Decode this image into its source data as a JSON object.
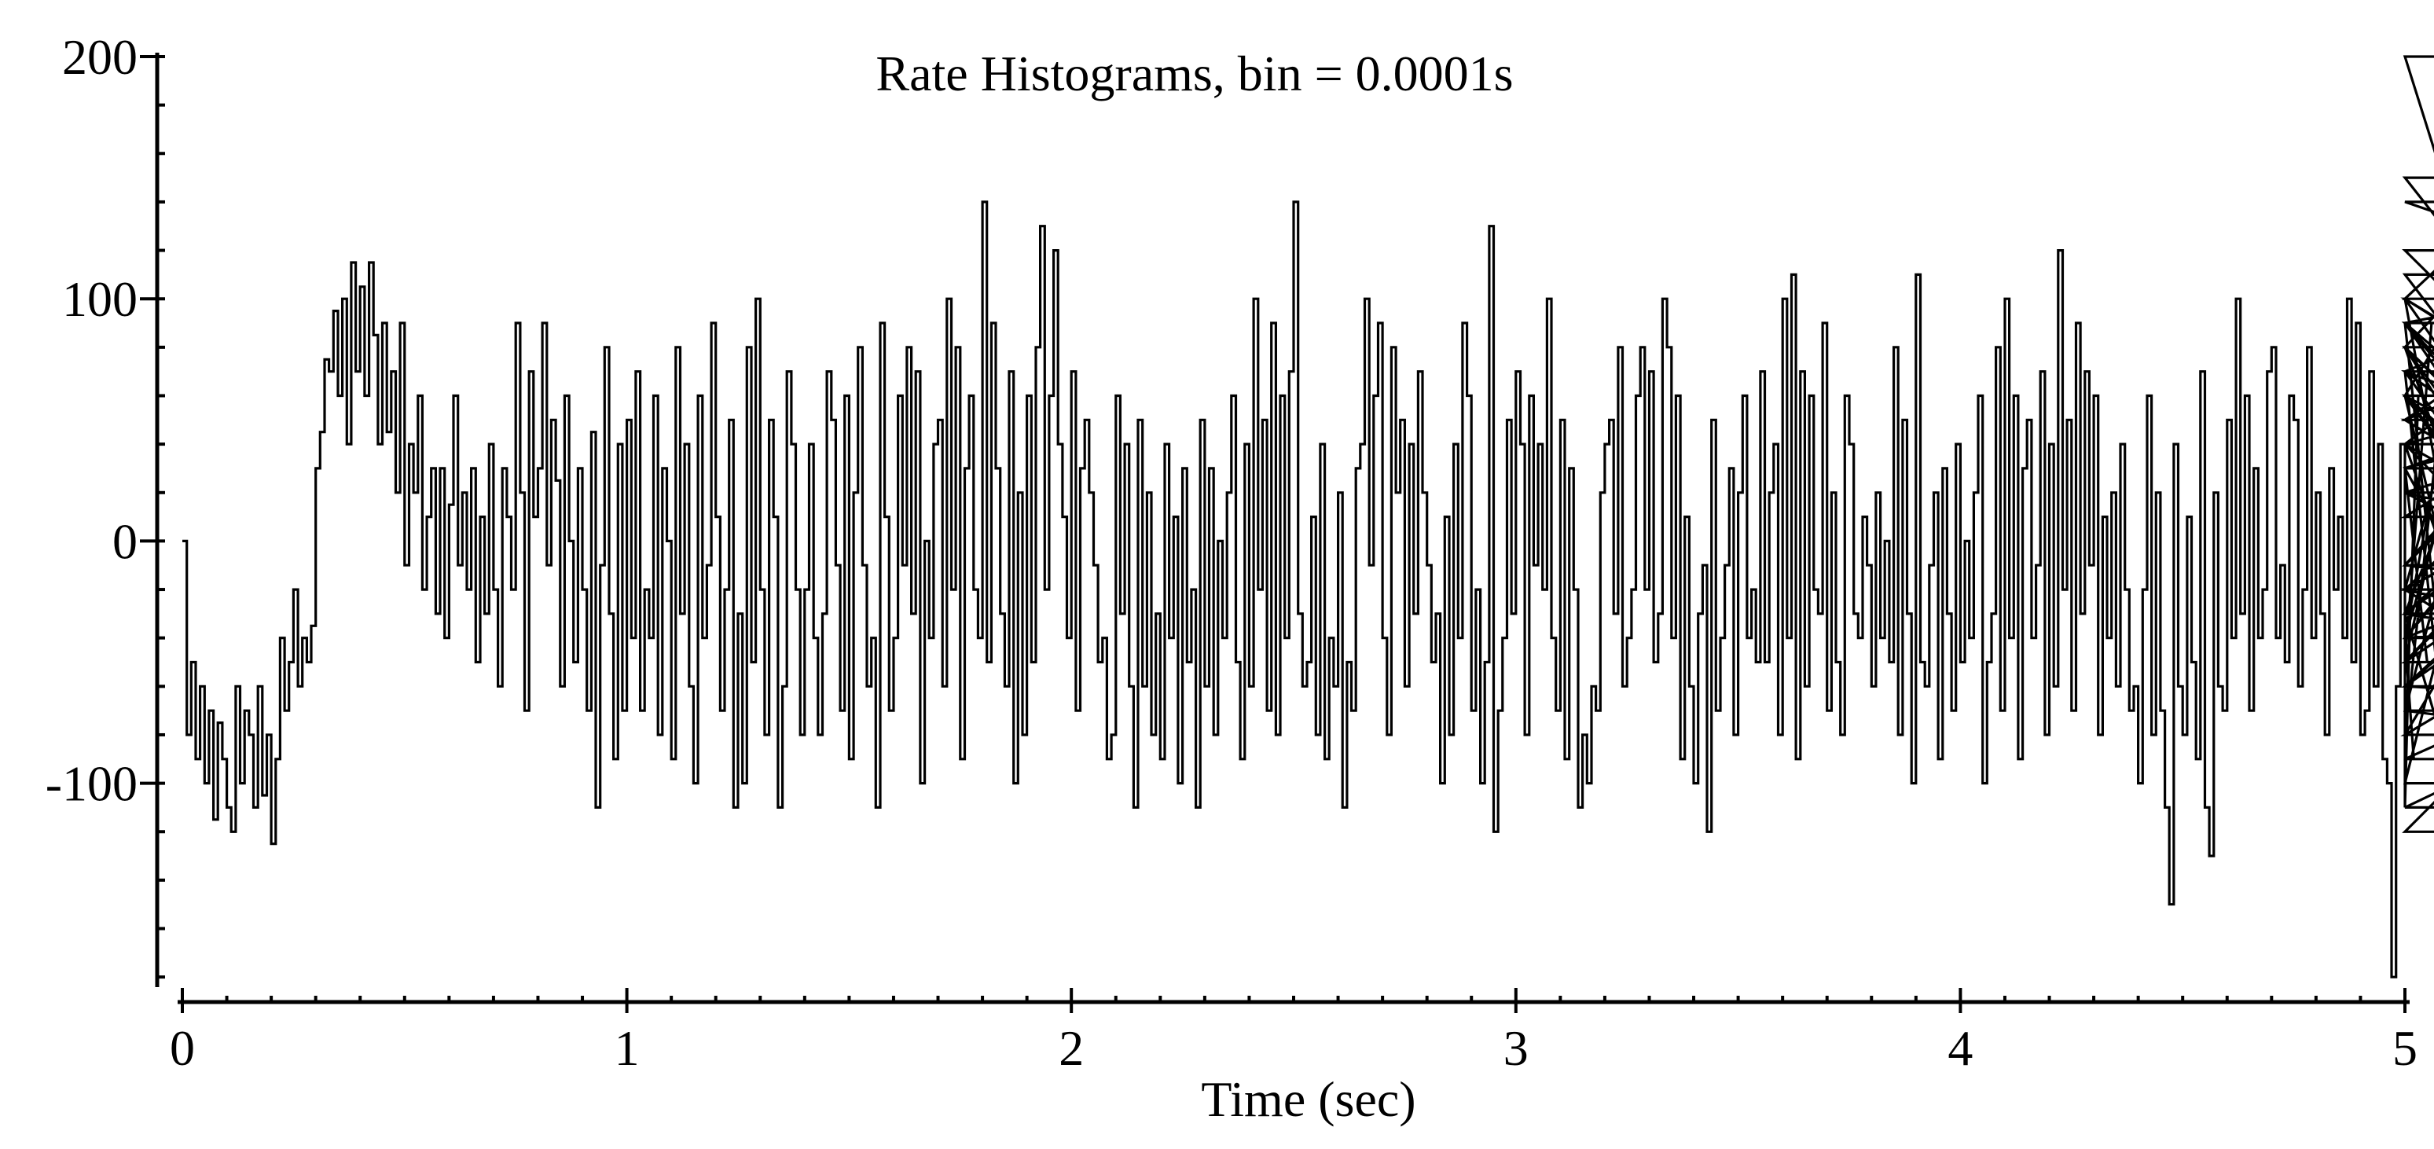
{
  "chart_data": {
    "type": "line",
    "title": "Rate Histograms, bin = 0.0001s",
    "xlabel": "Time (sec)",
    "ylabel": "",
    "xlim": [
      0,
      5
    ],
    "ylim": [
      -190,
      200
    ],
    "x_ticks": [
      "0",
      "1",
      "2",
      "3",
      "4",
      "5"
    ],
    "x_tick_values": [
      0,
      1,
      2,
      3,
      4,
      5
    ],
    "y_ticks": [
      "200",
      "100",
      "0",
      "-100"
    ],
    "y_tick_values": [
      200,
      100,
      0,
      -100
    ],
    "grid": false,
    "legend": "none",
    "line_color": "#000000",
    "series": [
      {
        "x_start": 0,
        "x_step": 0.01,
        "values": [
          0,
          -80,
          -50,
          -90,
          -60,
          -100,
          -70,
          -115,
          -75,
          -90,
          -110,
          -120,
          -60,
          -100,
          -70,
          -80,
          -110,
          -60,
          -105,
          -80,
          -125,
          -90,
          -40,
          -70,
          -50,
          -20,
          -60,
          -40,
          -50,
          -35,
          30,
          45,
          75,
          70,
          95,
          60,
          100,
          40,
          115,
          70,
          105,
          60,
          115,
          85,
          40,
          90,
          45,
          70,
          20,
          90,
          -10,
          40,
          20,
          60,
          -20,
          10,
          30,
          -30,
          30,
          -40,
          15,
          60,
          -10,
          20,
          -20,
          30,
          -50,
          10,
          -30,
          40,
          -20,
          -60,
          30,
          10,
          -20,
          90,
          20,
          -70,
          70,
          10,
          30,
          90,
          -10,
          50,
          25,
          -60,
          60,
          0,
          -50,
          30,
          -20,
          -70,
          45,
          -110,
          -10,
          80,
          -30,
          -90,
          40,
          -70,
          50,
          -40,
          70,
          -70,
          -20,
          -40,
          60,
          -80,
          30,
          0,
          -90,
          80,
          -30,
          40,
          -60,
          -100,
          60,
          -40,
          -10,
          90,
          10,
          -70,
          -20,
          50,
          -110,
          -30,
          -100,
          80,
          -50,
          100,
          -20,
          -80,
          50,
          10,
          -110,
          -60,
          70,
          40,
          -20,
          -80,
          -20,
          40,
          -40,
          -80,
          -30,
          70,
          50,
          -10,
          -70,
          60,
          -90,
          20,
          80,
          -10,
          -60,
          -40,
          -110,
          90,
          10,
          -70,
          -40,
          60,
          -10,
          80,
          -30,
          70,
          -100,
          0,
          -40,
          40,
          50,
          -60,
          100,
          -20,
          80,
          -90,
          30,
          60,
          -20,
          -40,
          140,
          -50,
          90,
          30,
          -30,
          -60,
          70,
          -100,
          20,
          -80,
          60,
          -50,
          80,
          130,
          -20,
          60,
          120,
          40,
          10,
          -40,
          70,
          -70,
          30,
          50,
          20,
          -10,
          -50,
          -40,
          -90,
          -80,
          60,
          -30,
          40,
          -60,
          -110,
          50,
          -60,
          20,
          -80,
          -30,
          -90,
          40,
          -40,
          10,
          -100,
          30,
          -50,
          -20,
          -110,
          50,
          -60,
          30,
          -80,
          0,
          -40,
          20,
          60,
          -50,
          -90,
          40,
          -60,
          100,
          -20,
          50,
          -70,
          90,
          -80,
          60,
          -40,
          70,
          140,
          -30,
          -60,
          -50,
          10,
          -80,
          40,
          -90,
          -40,
          -60,
          20,
          -110,
          -50,
          -70,
          30,
          40,
          100,
          -10,
          60,
          90,
          -40,
          -80,
          80,
          20,
          50,
          -60,
          40,
          -30,
          70,
          20,
          -10,
          -50,
          -30,
          -100,
          10,
          -80,
          40,
          -40,
          90,
          60,
          -70,
          -20,
          -100,
          -50,
          130,
          -120,
          -70,
          -40,
          50,
          -30,
          70,
          40,
          -80,
          60,
          -10,
          40,
          -20,
          100,
          -40,
          -70,
          50,
          -90,
          30,
          -20,
          -110,
          -80,
          -100,
          -60,
          -70,
          20,
          40,
          50,
          -30,
          80,
          -60,
          -40,
          -20,
          60,
          80,
          -20,
          70,
          -50,
          -30,
          100,
          80,
          -40,
          60,
          -90,
          10,
          -60,
          -100,
          -30,
          -10,
          -120,
          50,
          -70,
          -40,
          -10,
          30,
          -80,
          20,
          60,
          -40,
          -20,
          -50,
          70,
          -50,
          20,
          40,
          -80,
          100,
          -40,
          110,
          -90,
          70,
          -60,
          60,
          -20,
          -30,
          90,
          -70,
          20,
          -50,
          -80,
          60,
          40,
          -30,
          -40,
          10,
          -10,
          -60,
          20,
          -40,
          0,
          -50,
          80,
          -80,
          50,
          -30,
          -100,
          110,
          -50,
          -60,
          -10,
          20,
          -90,
          30,
          -30,
          -70,
          40,
          -50,
          0,
          -40,
          20,
          60,
          -100,
          -50,
          -30,
          80,
          -70,
          100,
          -40,
          60,
          -90,
          30,
          50,
          -40,
          -10,
          70,
          -80,
          40,
          -60,
          120,
          -20,
          50,
          -70,
          90,
          -30,
          70,
          -10,
          60,
          -80,
          10,
          -40,
          20,
          -60,
          40,
          -20,
          -70,
          -60,
          -100,
          -20,
          60,
          -80,
          20,
          -70,
          -110,
          -150,
          40,
          -60,
          -80,
          10,
          -50,
          -90,
          70,
          -110,
          -130,
          20,
          -60,
          -70,
          50,
          -40,
          100,
          -30,
          60,
          -70,
          30,
          -40,
          -20,
          70,
          80,
          -40,
          -10,
          -50,
          60,
          50,
          -60,
          -20,
          80,
          -40,
          20,
          -30,
          -80,
          30,
          -20,
          10,
          -40,
          100,
          -50,
          90,
          -80,
          -70,
          70,
          -60,
          40,
          -90,
          -100,
          -180,
          -60,
          40,
          -110,
          -40,
          -90,
          60,
          30,
          -50,
          90,
          -30,
          -80,
          70,
          -100,
          -20,
          60,
          -40,
          100,
          -50,
          80,
          30,
          -30,
          60,
          40,
          -70,
          80,
          -40,
          110,
          50,
          70,
          90,
          100,
          150,
          80,
          140,
          120,
          60,
          -20,
          40,
          90,
          -10,
          60,
          -40,
          50,
          100,
          -10,
          80,
          -30,
          30,
          60,
          200,
          -80,
          70,
          -60,
          20,
          50,
          90,
          -30,
          60,
          -40,
          80,
          -20,
          40,
          70,
          -10,
          100,
          30,
          60,
          -50,
          80,
          -40,
          10,
          90,
          -20,
          50,
          -30,
          70,
          20,
          -50,
          90,
          -60,
          40,
          -110,
          -40,
          -30,
          80,
          -70,
          -90,
          -20,
          -120,
          40,
          -50,
          60,
          -80,
          20,
          -20,
          -60,
          100,
          -10,
          -30,
          -60,
          -70
        ]
      }
    ]
  }
}
